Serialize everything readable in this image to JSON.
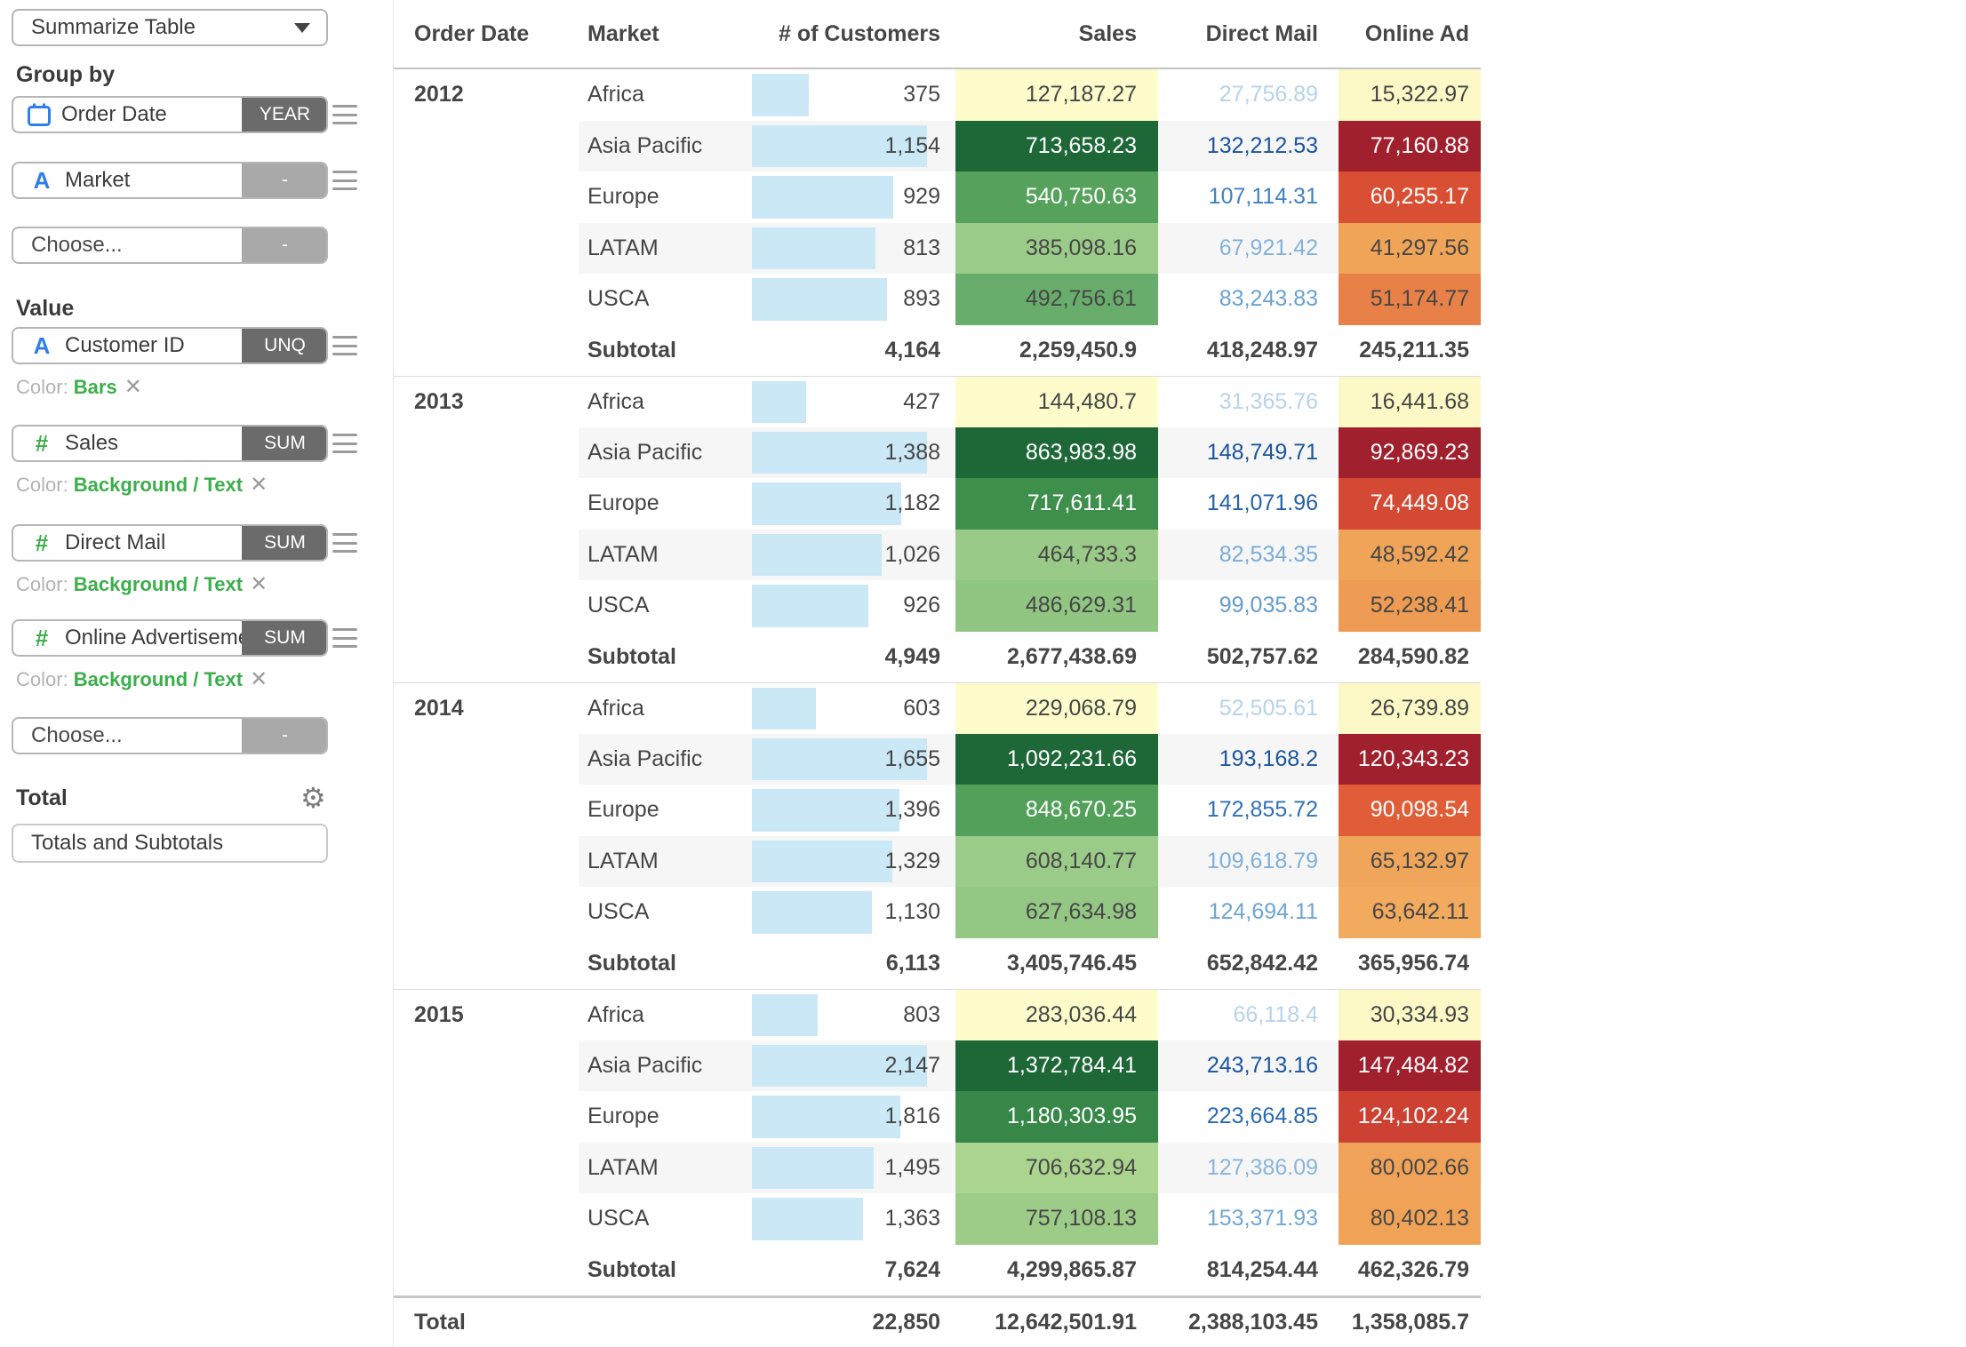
{
  "sidebar": {
    "chart_type": "Summarize Table",
    "group_by_label": "Group by",
    "value_label": "Value",
    "total_label": "Total",
    "total_mode": "Totals and Subtotals",
    "close_glyph": "✕",
    "color_prefix": "Color:",
    "group_fields": [
      {
        "name": "Order Date",
        "icon": "calendar-icon",
        "agg": "YEAR",
        "agg_style": "dark",
        "handle": true
      },
      {
        "name": "Market",
        "icon": "text-field-icon",
        "agg": "-",
        "agg_style": "light",
        "handle": true
      },
      {
        "name": "Choose...",
        "icon": null,
        "agg": "-",
        "agg_style": "light",
        "handle": false
      }
    ],
    "value_fields": [
      {
        "name": "Customer ID",
        "icon": "text-field-icon",
        "agg": "UNQ",
        "agg_style": "dark",
        "handle": true,
        "color_value": "Bars"
      },
      {
        "name": "Sales",
        "icon": "number-field-icon",
        "agg": "SUM",
        "agg_style": "dark",
        "handle": true,
        "color_value": "Background / Text"
      },
      {
        "name": "Direct Mail",
        "icon": "number-field-icon",
        "agg": "SUM",
        "agg_style": "dark",
        "handle": true,
        "color_value": "Background / Text"
      },
      {
        "name": "Online Advertisement",
        "icon": "number-field-icon",
        "agg": "SUM",
        "agg_style": "dark",
        "handle": true,
        "color_value": "Background / Text"
      },
      {
        "name": "Choose...",
        "icon": null,
        "agg": "-",
        "agg_style": "light",
        "handle": false,
        "color_value": null
      }
    ]
  },
  "table": {
    "header": {
      "order_date": "Order Date",
      "market": "Market",
      "customers": "# of Customers",
      "sales": "Sales",
      "direct_mail": "Direct Mail",
      "online_ad": "Online Ad"
    },
    "subtotal_label": "Subtotal",
    "groups": [
      {
        "year": "2012",
        "rows": [
          {
            "market": "Africa",
            "customers": 375,
            "customers_label": "375",
            "sales": 127187.27,
            "sales_label": "127,187.27",
            "direct_mail": 27756.89,
            "direct_mail_label": "27,756.89",
            "online_ad": 15322.97,
            "online_ad_label": "15,322.97"
          },
          {
            "market": "Asia Pacific",
            "customers": 1154,
            "customers_label": "1,154",
            "sales": 713658.23,
            "sales_label": "713,658.23",
            "direct_mail": 132212.53,
            "direct_mail_label": "132,212.53",
            "online_ad": 77160.88,
            "online_ad_label": "77,160.88"
          },
          {
            "market": "Europe",
            "customers": 929,
            "customers_label": "929",
            "sales": 540750.63,
            "sales_label": "540,750.63",
            "direct_mail": 107114.31,
            "direct_mail_label": "107,114.31",
            "online_ad": 60255.17,
            "online_ad_label": "60,255.17"
          },
          {
            "market": "LATAM",
            "customers": 813,
            "customers_label": "813",
            "sales": 385098.16,
            "sales_label": "385,098.16",
            "direct_mail": 67921.42,
            "direct_mail_label": "67,921.42",
            "online_ad": 41297.56,
            "online_ad_label": "41,297.56"
          },
          {
            "market": "USCA",
            "customers": 893,
            "customers_label": "893",
            "sales": 492756.61,
            "sales_label": "492,756.61",
            "direct_mail": 83243.83,
            "direct_mail_label": "83,243.83",
            "online_ad": 51174.77,
            "online_ad_label": "51,174.77"
          }
        ],
        "subtotal": {
          "customers_label": "4,164",
          "sales_label": "2,259,450.9",
          "direct_mail_label": "418,248.97",
          "online_ad_label": "245,211.35"
        }
      },
      {
        "year": "2013",
        "rows": [
          {
            "market": "Africa",
            "customers": 427,
            "customers_label": "427",
            "sales": 144480.7,
            "sales_label": "144,480.7",
            "direct_mail": 31365.76,
            "direct_mail_label": "31,365.76",
            "online_ad": 16441.68,
            "online_ad_label": "16,441.68"
          },
          {
            "market": "Asia Pacific",
            "customers": 1388,
            "customers_label": "1,388",
            "sales": 863983.98,
            "sales_label": "863,983.98",
            "direct_mail": 148749.71,
            "direct_mail_label": "148,749.71",
            "online_ad": 92869.23,
            "online_ad_label": "92,869.23"
          },
          {
            "market": "Europe",
            "customers": 1182,
            "customers_label": "1,182",
            "sales": 717611.41,
            "sales_label": "717,611.41",
            "direct_mail": 141071.96,
            "direct_mail_label": "141,071.96",
            "online_ad": 74449.08,
            "online_ad_label": "74,449.08"
          },
          {
            "market": "LATAM",
            "customers": 1026,
            "customers_label": "1,026",
            "sales": 464733.3,
            "sales_label": "464,733.3",
            "direct_mail": 82534.35,
            "direct_mail_label": "82,534.35",
            "online_ad": 48592.42,
            "online_ad_label": "48,592.42"
          },
          {
            "market": "USCA",
            "customers": 926,
            "customers_label": "926",
            "sales": 486629.31,
            "sales_label": "486,629.31",
            "direct_mail": 99035.83,
            "direct_mail_label": "99,035.83",
            "online_ad": 52238.41,
            "online_ad_label": "52,238.41"
          }
        ],
        "subtotal": {
          "customers_label": "4,949",
          "sales_label": "2,677,438.69",
          "direct_mail_label": "502,757.62",
          "online_ad_label": "284,590.82"
        }
      },
      {
        "year": "2014",
        "rows": [
          {
            "market": "Africa",
            "customers": 603,
            "customers_label": "603",
            "sales": 229068.79,
            "sales_label": "229,068.79",
            "direct_mail": 52505.61,
            "direct_mail_label": "52,505.61",
            "online_ad": 26739.89,
            "online_ad_label": "26,739.89"
          },
          {
            "market": "Asia Pacific",
            "customers": 1655,
            "customers_label": "1,655",
            "sales": 1092231.66,
            "sales_label": "1,092,231.66",
            "direct_mail": 193168.2,
            "direct_mail_label": "193,168.2",
            "online_ad": 120343.23,
            "online_ad_label": "120,343.23"
          },
          {
            "market": "Europe",
            "customers": 1396,
            "customers_label": "1,396",
            "sales": 848670.25,
            "sales_label": "848,670.25",
            "direct_mail": 172855.72,
            "direct_mail_label": "172,855.72",
            "online_ad": 90098.54,
            "online_ad_label": "90,098.54"
          },
          {
            "market": "LATAM",
            "customers": 1329,
            "customers_label": "1,329",
            "sales": 608140.77,
            "sales_label": "608,140.77",
            "direct_mail": 109618.79,
            "direct_mail_label": "109,618.79",
            "online_ad": 65132.97,
            "online_ad_label": "65,132.97"
          },
          {
            "market": "USCA",
            "customers": 1130,
            "customers_label": "1,130",
            "sales": 627634.98,
            "sales_label": "627,634.98",
            "direct_mail": 124694.11,
            "direct_mail_label": "124,694.11",
            "online_ad": 63642.11,
            "online_ad_label": "63,642.11"
          }
        ],
        "subtotal": {
          "customers_label": "6,113",
          "sales_label": "3,405,746.45",
          "direct_mail_label": "652,842.42",
          "online_ad_label": "365,956.74"
        }
      },
      {
        "year": "2015",
        "rows": [
          {
            "market": "Africa",
            "customers": 803,
            "customers_label": "803",
            "sales": 283036.44,
            "sales_label": "283,036.44",
            "direct_mail": 66118.4,
            "direct_mail_label": "66,118.4",
            "online_ad": 30334.93,
            "online_ad_label": "30,334.93"
          },
          {
            "market": "Asia Pacific",
            "customers": 2147,
            "customers_label": "2,147",
            "sales": 1372784.41,
            "sales_label": "1,372,784.41",
            "direct_mail": 243713.16,
            "direct_mail_label": "243,713.16",
            "online_ad": 147484.82,
            "online_ad_label": "147,484.82"
          },
          {
            "market": "Europe",
            "customers": 1816,
            "customers_label": "1,816",
            "sales": 1180303.95,
            "sales_label": "1,180,303.95",
            "direct_mail": 223664.85,
            "direct_mail_label": "223,664.85",
            "online_ad": 124102.24,
            "online_ad_label": "124,102.24"
          },
          {
            "market": "LATAM",
            "customers": 1495,
            "customers_label": "1,495",
            "sales": 706632.94,
            "sales_label": "706,632.94",
            "direct_mail": 127386.09,
            "direct_mail_label": "127,386.09",
            "online_ad": 80002.66,
            "online_ad_label": "80,002.66"
          },
          {
            "market": "USCA",
            "customers": 1363,
            "customers_label": "1,363",
            "sales": 757108.13,
            "sales_label": "757,108.13",
            "direct_mail": 153371.93,
            "direct_mail_label": "153,371.93",
            "online_ad": 80402.13,
            "online_ad_label": "80,402.13"
          }
        ],
        "subtotal": {
          "customers_label": "7,624",
          "sales_label": "4,299,865.87",
          "direct_mail_label": "814,254.44",
          "online_ad_label": "462,326.79"
        }
      }
    ],
    "total": {
      "label": "Total",
      "customers_label": "22,850",
      "sales_label": "12,642,501.91",
      "direct_mail_label": "2,388,103.45",
      "online_ad_label": "1,358,085.7"
    }
  },
  "colors": {
    "bar_fill": "#cbe8f6",
    "stripe": "#f6f6f6",
    "accent_green": "#3cae4b",
    "accent_blue": "#2e7fe8",
    "pill_dark": "#6b6b6b",
    "pill_light": "#a9a9a9",
    "sales_ramp": [
      [
        0,
        "#fdfcca"
      ],
      [
        0.3,
        "#c9e49c"
      ],
      [
        0.45,
        "#97c986"
      ],
      [
        0.6,
        "#6db06f"
      ],
      [
        0.75,
        "#4c9c54"
      ],
      [
        0.85,
        "#2f8143"
      ],
      [
        1,
        "#1e6838"
      ]
    ],
    "online_ramp": [
      [
        0,
        "#fcf9c6"
      ],
      [
        0.25,
        "#f5cd7e"
      ],
      [
        0.42,
        "#f0a458"
      ],
      [
        0.55,
        "#eb8c4b"
      ],
      [
        0.7,
        "#de5435"
      ],
      [
        0.85,
        "#c43730"
      ],
      [
        1,
        "#a1202d"
      ]
    ],
    "dm_ramp": [
      [
        0,
        "#b7d3ea"
      ],
      [
        0.35,
        "#88b5dc"
      ],
      [
        0.5,
        "#6fa6d4"
      ],
      [
        0.75,
        "#4383c3"
      ],
      [
        0.9,
        "#2868af"
      ],
      [
        1,
        "#1a559e"
      ]
    ],
    "sales_white_text_at": 0.68,
    "online_white_text_at": 0.63,
    "text_dark": "#464646",
    "text_white": "#ffffff"
  }
}
